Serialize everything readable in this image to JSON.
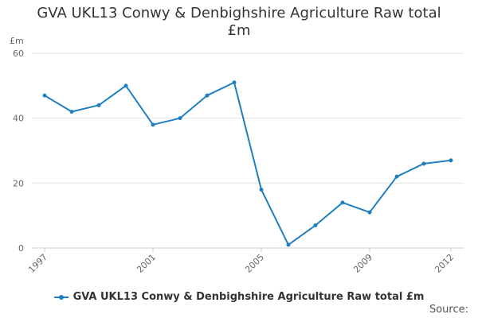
{
  "chart_data": {
    "type": "line",
    "title_lines": [
      "GVA UKL13 Conwy & Denbighshire Agriculture Raw total",
      "£m"
    ],
    "ylabel": "£m",
    "ylim": [
      0,
      60
    ],
    "yticks": [
      0,
      20,
      40,
      60
    ],
    "xticks": [
      1997,
      2001,
      2005,
      2009,
      2012
    ],
    "x": [
      1997,
      1998,
      1999,
      2000,
      2001,
      2002,
      2003,
      2004,
      2005,
      2006,
      2007,
      2008,
      2009,
      2010,
      2011,
      2012
    ],
    "series": [
      {
        "name": "GVA UKL13 Conwy & Denbighshire Agriculture Raw total £m",
        "color": "#1f7fbf",
        "values": [
          47,
          42,
          44,
          50,
          38,
          40,
          47,
          51,
          18,
          1,
          7,
          14,
          11,
          22,
          26,
          27
        ]
      }
    ],
    "grid": true,
    "legend_position": "bottom"
  },
  "source_label": "Source:"
}
